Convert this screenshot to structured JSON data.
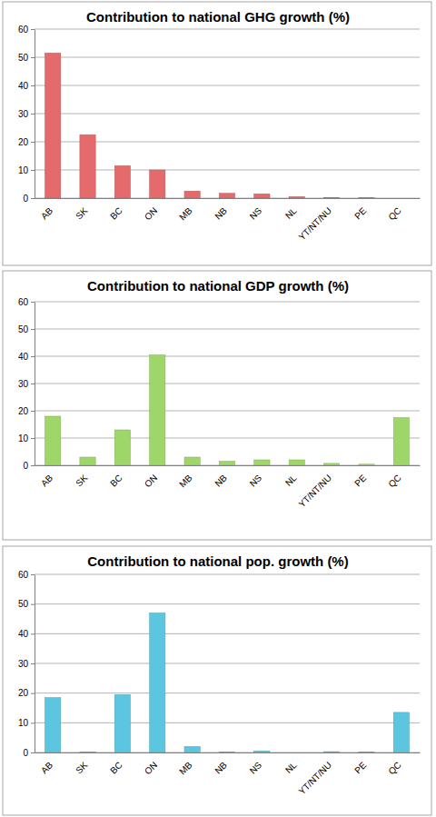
{
  "chart_data": [
    {
      "type": "bar",
      "title": "Contribution to national GHG growth (%)",
      "categories": [
        "AB",
        "SK",
        "BC",
        "ON",
        "MB",
        "NB",
        "NS",
        "NL",
        "YT/NT/NU",
        "PE",
        "QC"
      ],
      "values": [
        51.5,
        22.5,
        11.5,
        10,
        2.5,
        1.7,
        1.5,
        0.5,
        0.2,
        0.1,
        0
      ],
      "color": "#e46a6c",
      "ylim": [
        0,
        60
      ],
      "yticks": [
        0,
        10,
        20,
        30,
        40,
        50,
        60
      ],
      "grid": true
    },
    {
      "type": "bar",
      "title": "Contribution to national GDP growth (%)",
      "categories": [
        "AB",
        "SK",
        "BC",
        "ON",
        "MB",
        "NB",
        "NS",
        "NL",
        "YT/NT/NU",
        "PE",
        "QC"
      ],
      "values": [
        18,
        3,
        13,
        40.5,
        3,
        1.5,
        2,
        2,
        0.7,
        0.4,
        17.5
      ],
      "color": "#9ed66a",
      "ylim": [
        0,
        60
      ],
      "yticks": [
        0,
        10,
        20,
        30,
        40,
        50,
        60
      ],
      "grid": true
    },
    {
      "type": "bar",
      "title": "Contribution to national pop. growth (%)",
      "categories": [
        "AB",
        "SK",
        "BC",
        "ON",
        "MB",
        "NB",
        "NS",
        "NL",
        "YT/NT/NU",
        "PE",
        "QC"
      ],
      "values": [
        18.5,
        0.2,
        19.5,
        47,
        2,
        0.2,
        0.5,
        0,
        0.3,
        0.2,
        13.5
      ],
      "color": "#5cc6e0",
      "ylim": [
        0,
        60
      ],
      "yticks": [
        0,
        10,
        20,
        30,
        40,
        50,
        60
      ],
      "grid": true
    }
  ]
}
